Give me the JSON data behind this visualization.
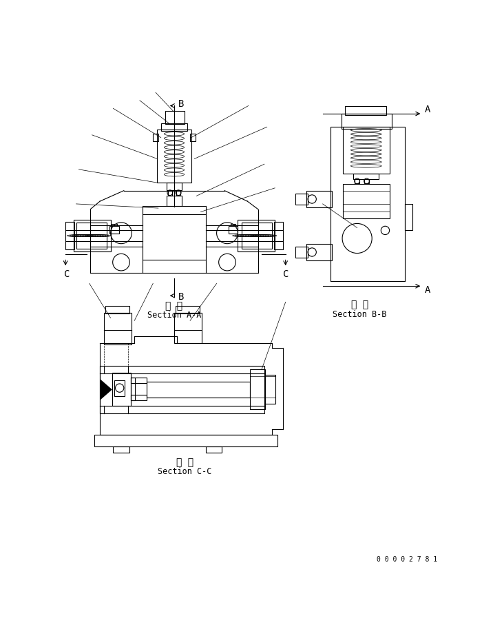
{
  "bg_color": "#ffffff",
  "fig_width": 7.16,
  "fig_height": 9.26,
  "dpi": 100,
  "section_aa_label_jp": "断 面",
  "section_aa_label_en": "Section A-A",
  "section_bb_label_jp": "断 面",
  "section_bb_label_en": "Section B-B",
  "section_cc_label_jp": "断 面",
  "section_cc_label_en": "Section C-C",
  "doc_number": "0 0 0 0 2 7 8 1"
}
